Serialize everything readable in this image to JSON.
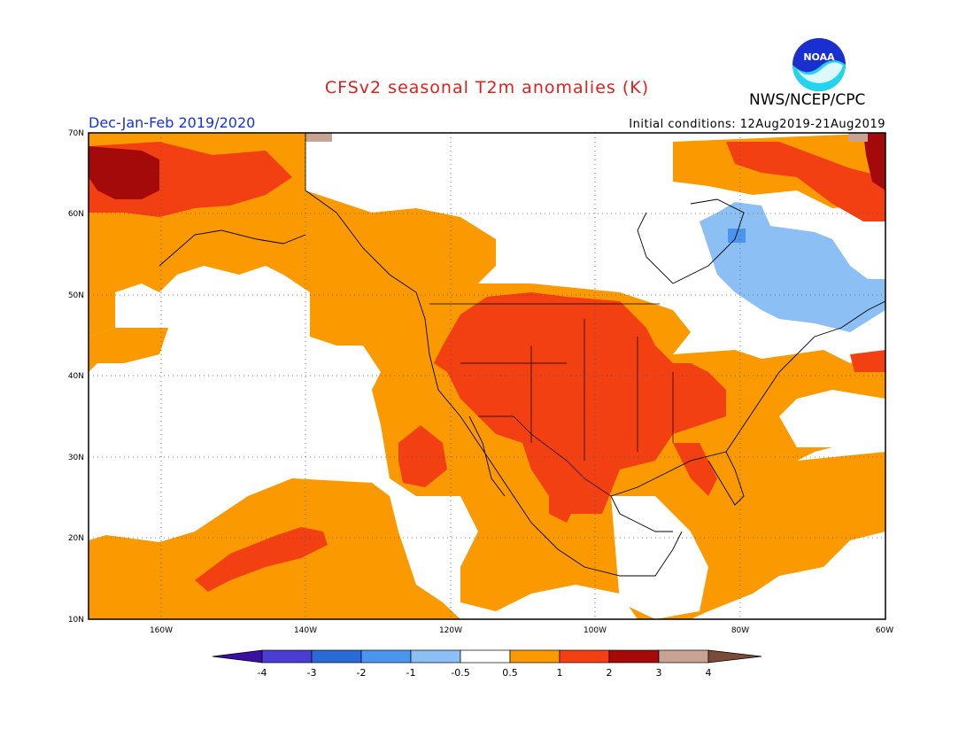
{
  "header": {
    "title": "CFSv2 seasonal T2m anomalies (K)",
    "org": "NWS/NCEP/CPC",
    "logo_text": "NOAA",
    "period": "Dec-Jan-Feb 2019/2020",
    "initial_conditions": "Initial conditions: 12Aug2019-21Aug2019"
  },
  "map": {
    "lat_labels": [
      "70N",
      "60N",
      "50N",
      "40N",
      "30N",
      "20N",
      "10N"
    ],
    "lon_labels": [
      "160W",
      "140W",
      "120W",
      "100W",
      "80W",
      "60W"
    ],
    "lat_range": [
      10,
      70
    ],
    "lon_range": [
      -170,
      -60
    ],
    "colors": {
      "ocean_background": "#ffffff",
      "gridline": "#555555"
    }
  },
  "colorbar": {
    "ticks": [
      "-4",
      "-3",
      "-2",
      "-1",
      "-0.5",
      "0.5",
      "1",
      "2",
      "3",
      "4"
    ],
    "colors": [
      "#3a10a0",
      "#4a3ed2",
      "#2a6ad6",
      "#4a96ef",
      "#8cc0f5",
      "#ffffff",
      "#fa9a00",
      "#f24012",
      "#a50a0a",
      "#c8a292",
      "#7a4a3a"
    ]
  },
  "legend_levels": {
    "below_-4": "#3a10a0",
    "-4_to_-3": "#4a3ed2",
    "-3_to_-2": "#2a6ad6",
    "-2_to_-1": "#4a96ef",
    "-1_to_-0.5": "#8cc0f5",
    "-0.5_to_0.5": "#ffffff",
    "0.5_to_1": "#fa9a00",
    "1_to_2": "#f24012",
    "2_to_3": "#a50a0a",
    "3_to_4": "#c8a292",
    "above_4": "#7a4a3a"
  }
}
